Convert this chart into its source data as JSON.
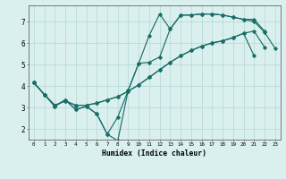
{
  "xlabel": "Humidex (Indice chaleur)",
  "background_color": "#daf0ef",
  "grid_color": "#b8dbd9",
  "line_color": "#1a6e68",
  "xlim": [
    -0.5,
    23.5
  ],
  "ylim": [
    1.5,
    7.75
  ],
  "yticks": [
    2,
    3,
    4,
    5,
    6,
    7
  ],
  "xticks": [
    0,
    1,
    2,
    3,
    4,
    5,
    6,
    7,
    8,
    9,
    10,
    11,
    12,
    13,
    14,
    15,
    16,
    17,
    18,
    19,
    20,
    21,
    22,
    23
  ],
  "line1_x": [
    0,
    1,
    2,
    3,
    4,
    5,
    6,
    7,
    8,
    9,
    10,
    11,
    12,
    13,
    14,
    15,
    16,
    17,
    18,
    19,
    20,
    21,
    22
  ],
  "line1_y": [
    4.15,
    3.6,
    3.05,
    3.35,
    2.9,
    3.05,
    2.7,
    1.75,
    1.45,
    3.8,
    5.05,
    6.35,
    7.35,
    6.65,
    7.3,
    7.3,
    7.35,
    7.35,
    7.3,
    7.2,
    7.1,
    7.1,
    6.55
  ],
  "line2_x": [
    0,
    1,
    2,
    3,
    4,
    5,
    6,
    7,
    8,
    9,
    10,
    11,
    12,
    13,
    14,
    15,
    16,
    17,
    18,
    19,
    20,
    21,
    22,
    23
  ],
  "line2_y": [
    4.15,
    3.6,
    3.05,
    3.35,
    2.9,
    3.05,
    2.7,
    1.75,
    2.55,
    3.8,
    5.05,
    5.1,
    5.35,
    6.65,
    7.3,
    7.3,
    7.35,
    7.35,
    7.3,
    7.2,
    7.1,
    7.0,
    6.5,
    5.75
  ],
  "line3_x": [
    0,
    1,
    2,
    3,
    4,
    5,
    6,
    7,
    8,
    9,
    10,
    11,
    12,
    13,
    14,
    15,
    16,
    17,
    18,
    19,
    20,
    21,
    22,
    23
  ],
  "line3_y": [
    4.15,
    3.6,
    3.1,
    3.3,
    3.1,
    3.1,
    3.2,
    3.35,
    3.5,
    3.75,
    4.05,
    4.4,
    4.75,
    5.1,
    5.4,
    5.65,
    5.85,
    6.0,
    6.1,
    6.25,
    6.45,
    6.55,
    5.8,
    null
  ],
  "line4_x": [
    0,
    1,
    2,
    3,
    4,
    5,
    6,
    7,
    8,
    9,
    10,
    11,
    12,
    13,
    14,
    15,
    16,
    17,
    18,
    19,
    20,
    21,
    22,
    23
  ],
  "line4_y": [
    4.15,
    3.6,
    3.1,
    3.3,
    3.1,
    3.1,
    3.2,
    3.35,
    3.5,
    3.75,
    4.05,
    4.4,
    4.75,
    5.1,
    5.4,
    5.65,
    5.85,
    6.0,
    6.1,
    6.25,
    6.45,
    5.4,
    null,
    null
  ]
}
